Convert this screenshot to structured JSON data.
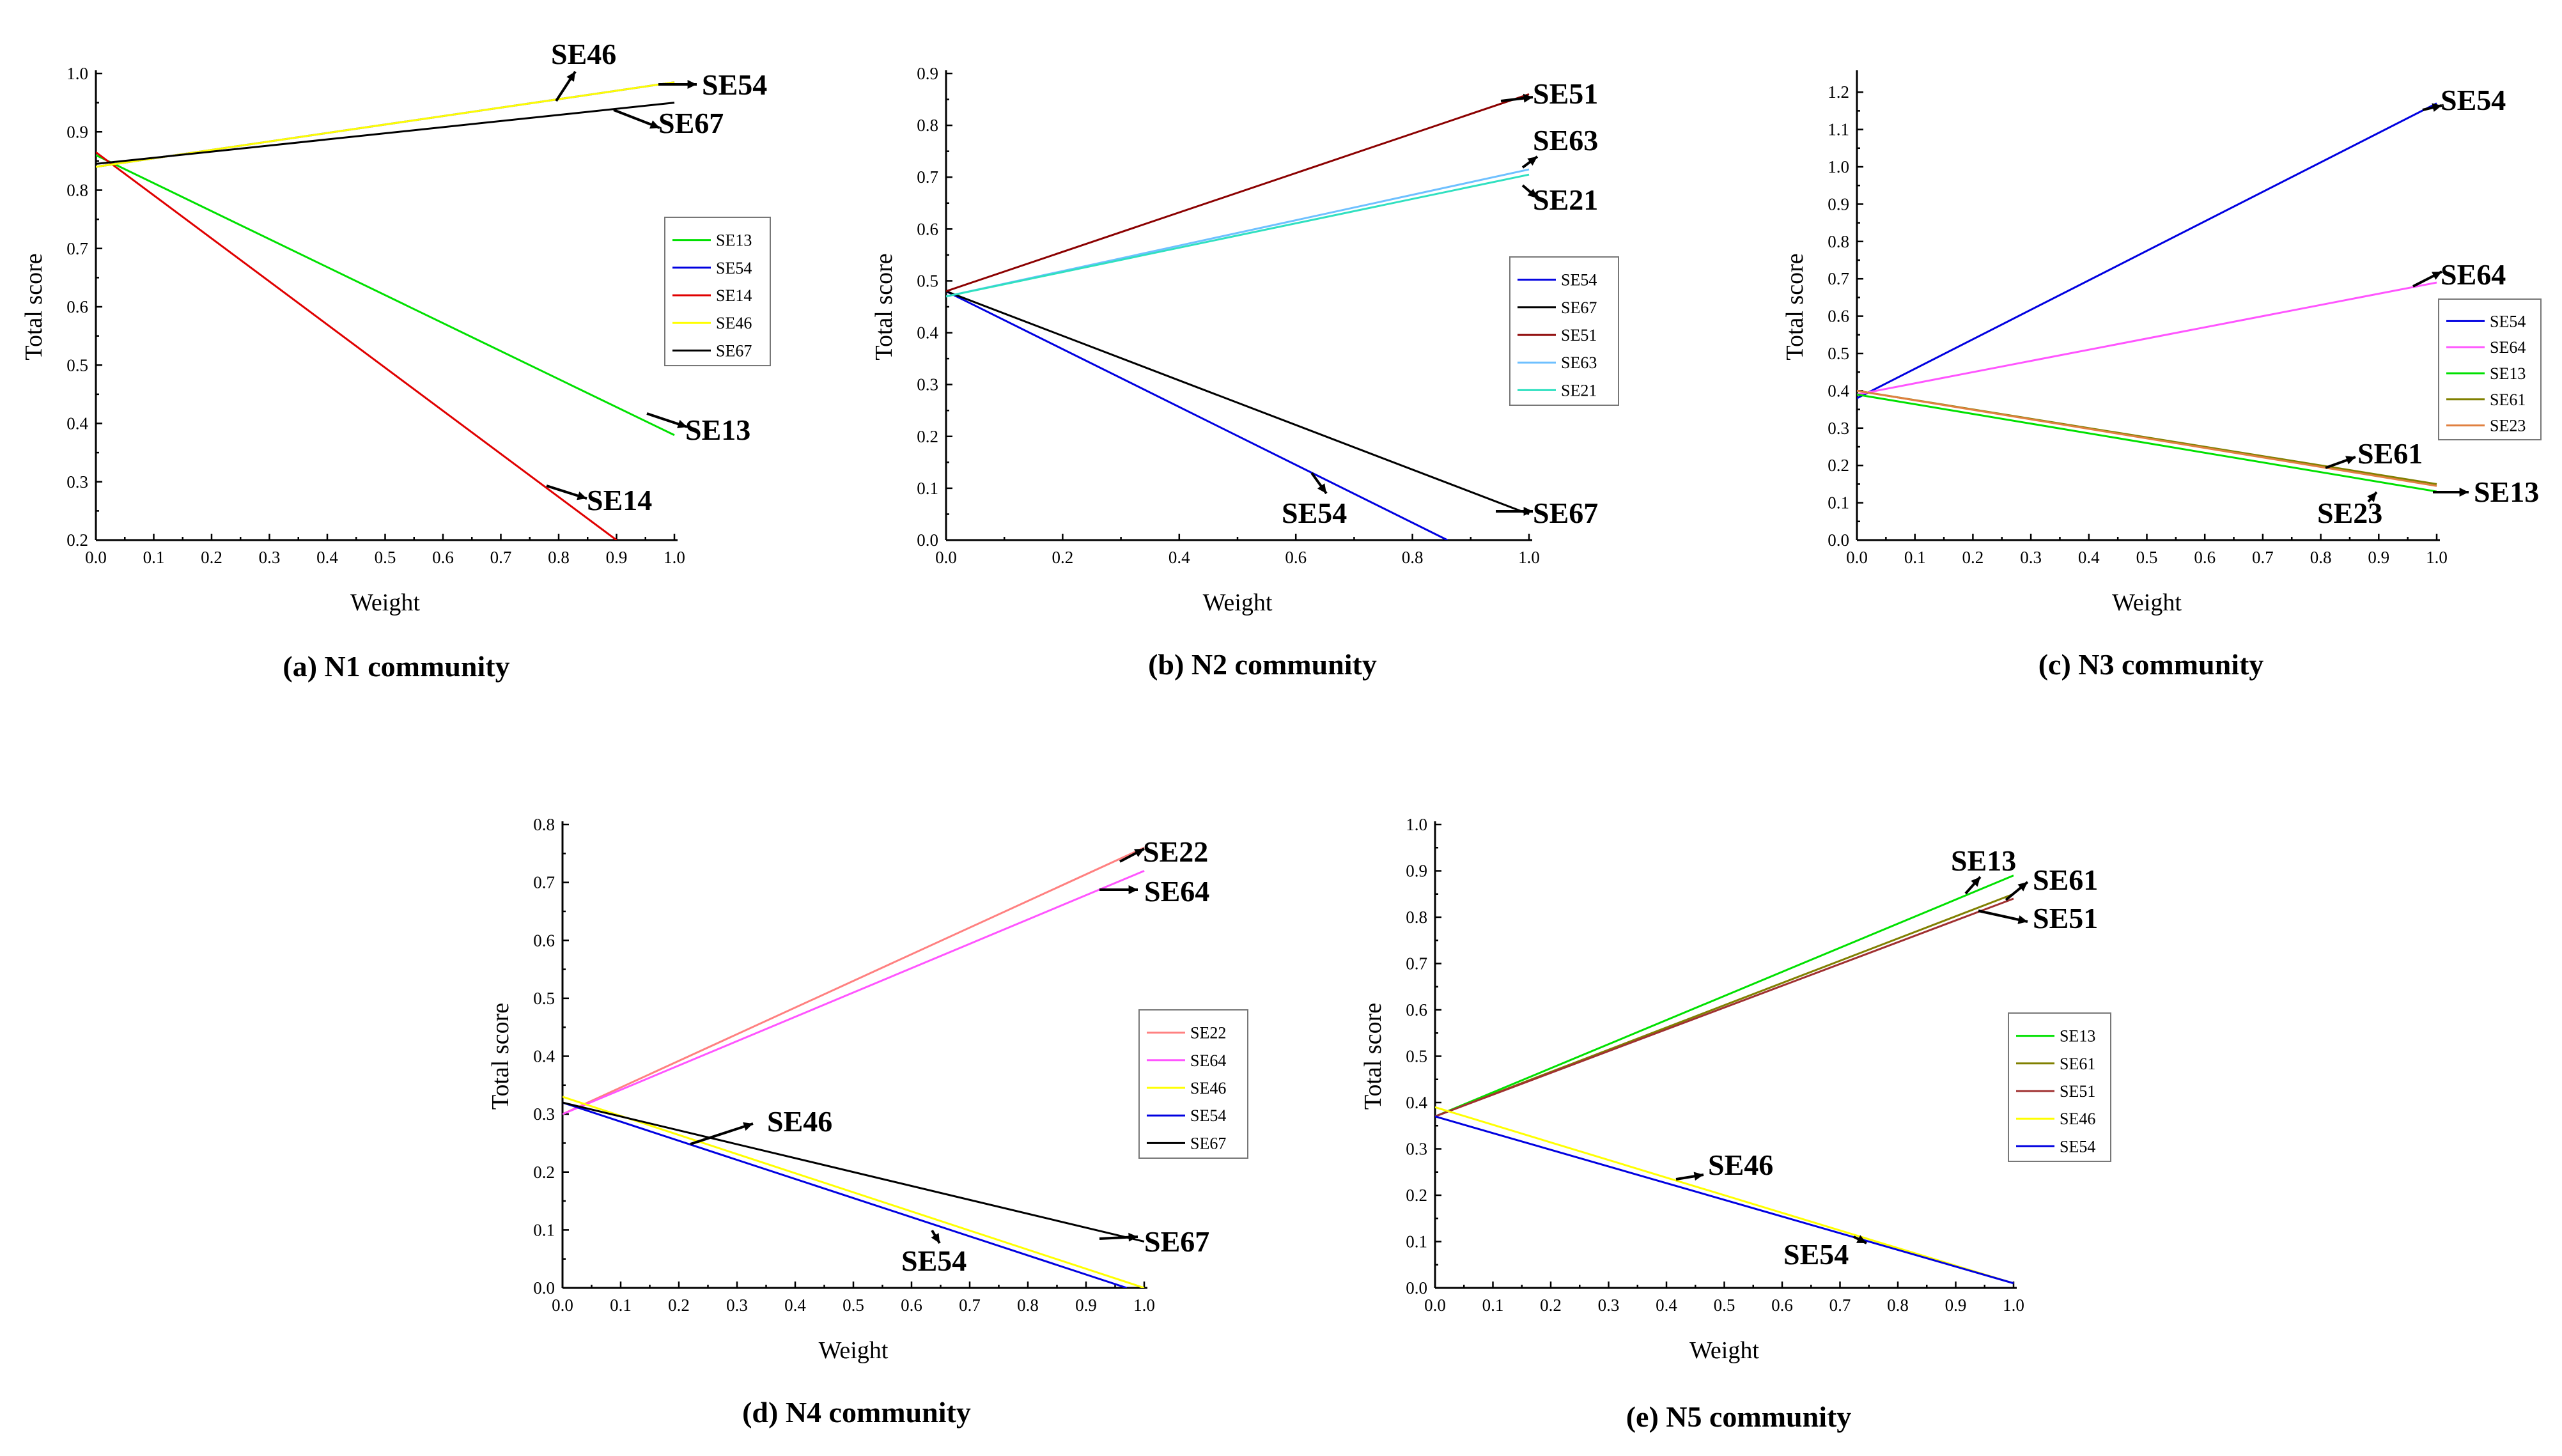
{
  "chart_data": [
    {
      "type": "line",
      "caption": "(a) N1 community",
      "xlabel": "Weight",
      "ylabel": "Total score",
      "xlim": [
        0.0,
        1.0
      ],
      "ylim": [
        0.2,
        1.0
      ],
      "xticks": [
        "0.0",
        "0.1",
        "0.2",
        "0.3",
        "0.4",
        "0.5",
        "0.6",
        "0.7",
        "0.8",
        "0.9",
        "1.0"
      ],
      "yticks": [
        "0.2",
        "0.3",
        "0.4",
        "0.5",
        "0.6",
        "0.7",
        "0.8",
        "0.9",
        "1.0"
      ],
      "legend_position": "right",
      "series": [
        {
          "name": "SE13",
          "color": "#00e000",
          "x": [
            0,
            1
          ],
          "y": [
            0.86,
            0.38
          ]
        },
        {
          "name": "SE54",
          "color": "#0000e0",
          "x": [
            0,
            1
          ],
          "y": [
            0.84,
            0.985
          ]
        },
        {
          "name": "SE14",
          "color": "#e00000",
          "x": [
            0,
            0.9
          ],
          "y": [
            0.865,
            0.2
          ]
        },
        {
          "name": "SE46",
          "color": "#ffff00",
          "x": [
            0,
            1
          ],
          "y": [
            0.84,
            0.985
          ]
        },
        {
          "name": "SE67",
          "color": "#000000",
          "x": [
            0,
            1
          ],
          "y": [
            0.845,
            0.95
          ]
        }
      ],
      "annotations": [
        {
          "text": "SE46",
          "at": [
            0.79,
            0.96
          ]
        },
        {
          "text": "SE54",
          "at": [
            1.0,
            0.985
          ]
        },
        {
          "text": "SE67",
          "at": [
            0.9,
            0.93
          ]
        },
        {
          "text": "SE13",
          "at": [
            1.0,
            0.38
          ]
        },
        {
          "text": "SE14",
          "at": [
            0.83,
            0.28
          ]
        }
      ]
    },
    {
      "type": "line",
      "caption": "(b) N2 community",
      "xlabel": "Weight",
      "ylabel": "Total score",
      "xlim": [
        0.0,
        1.0
      ],
      "ylim": [
        0.0,
        0.9
      ],
      "xticks": [
        "0.0",
        "0.2",
        "0.4",
        "0.6",
        "0.8",
        "1.0"
      ],
      "yticks": [
        "0.0",
        "0.1",
        "0.2",
        "0.3",
        "0.4",
        "0.5",
        "0.6",
        "0.7",
        "0.8",
        "0.9"
      ],
      "legend_position": "right",
      "series": [
        {
          "name": "SE54",
          "color": "#0000e0",
          "x": [
            0,
            0.86
          ],
          "y": [
            0.48,
            0.0
          ]
        },
        {
          "name": "SE67",
          "color": "#000000",
          "x": [
            0,
            1
          ],
          "y": [
            0.48,
            0.05
          ]
        },
        {
          "name": "SE51",
          "color": "#8b0000",
          "x": [
            0,
            1
          ],
          "y": [
            0.48,
            0.86
          ]
        },
        {
          "name": "SE63",
          "color": "#6ec0ff",
          "x": [
            0,
            1
          ],
          "y": [
            0.47,
            0.715
          ]
        },
        {
          "name": "SE21",
          "color": "#30e0c0",
          "x": [
            0,
            1
          ],
          "y": [
            0.47,
            0.705
          ]
        }
      ],
      "annotations": [
        {
          "text": "SE51",
          "at": [
            1.0,
            0.86
          ]
        },
        {
          "text": "SE63",
          "at": [
            1.0,
            0.715
          ]
        },
        {
          "text": "SE21",
          "at": [
            1.0,
            0.705
          ]
        },
        {
          "text": "SE54",
          "at": [
            0.65,
            0.12
          ]
        },
        {
          "text": "SE67",
          "at": [
            1.0,
            0.05
          ]
        }
      ]
    },
    {
      "type": "line",
      "caption": "(c) N3 community",
      "xlabel": "Weight",
      "ylabel": "Total score",
      "xlim": [
        0.0,
        1.0
      ],
      "ylim": [
        0.0,
        1.25
      ],
      "xticks": [
        "0.0",
        "0.1",
        "0.2",
        "0.3",
        "0.4",
        "0.5",
        "0.6",
        "0.7",
        "0.8",
        "0.9",
        "1.0"
      ],
      "yticks": [
        "0.0",
        "0.1",
        "0.2",
        "0.3",
        "0.4",
        "0.5",
        "0.6",
        "0.7",
        "0.8",
        "0.9",
        "1.0",
        "1.1",
        "1.2"
      ],
      "legend_position": "right",
      "series": [
        {
          "name": "SE54",
          "color": "#0000e0",
          "x": [
            0,
            1
          ],
          "y": [
            0.38,
            1.17
          ]
        },
        {
          "name": "SE64",
          "color": "#ff55ff",
          "x": [
            0,
            1
          ],
          "y": [
            0.39,
            0.69
          ]
        },
        {
          "name": "SE13",
          "color": "#00e000",
          "x": [
            0,
            1
          ],
          "y": [
            0.39,
            0.13
          ]
        },
        {
          "name": "SE61",
          "color": "#808000",
          "x": [
            0,
            1
          ],
          "y": [
            0.4,
            0.15
          ]
        },
        {
          "name": "SE23",
          "color": "#e08040",
          "x": [
            0,
            1
          ],
          "y": [
            0.4,
            0.145
          ]
        }
      ],
      "annotations": [
        {
          "text": "SE54",
          "at": [
            1.0,
            1.17
          ]
        },
        {
          "text": "SE64",
          "at": [
            1.0,
            0.69
          ]
        },
        {
          "text": "SE61",
          "at": [
            0.83,
            0.2
          ]
        },
        {
          "text": "SE13",
          "at": [
            1.0,
            0.13
          ]
        },
        {
          "text": "SE23",
          "at": [
            0.9,
            0.12
          ]
        }
      ]
    },
    {
      "type": "line",
      "caption": "(d) N4 community",
      "xlabel": "Weight",
      "ylabel": "Total score",
      "xlim": [
        0.0,
        1.0
      ],
      "ylim": [
        0.0,
        0.8
      ],
      "xticks": [
        "0.0",
        "0.1",
        "0.2",
        "0.3",
        "0.4",
        "0.5",
        "0.6",
        "0.7",
        "0.8",
        "0.9",
        "1.0"
      ],
      "yticks": [
        "0.0",
        "0.1",
        "0.2",
        "0.3",
        "0.4",
        "0.5",
        "0.6",
        "0.7",
        "0.8"
      ],
      "legend_position": "right",
      "series": [
        {
          "name": "SE22",
          "color": "#ff8080",
          "x": [
            0,
            1
          ],
          "y": [
            0.3,
            0.76
          ]
        },
        {
          "name": "SE64",
          "color": "#ff55ff",
          "x": [
            0,
            1
          ],
          "y": [
            0.3,
            0.72
          ]
        },
        {
          "name": "SE46",
          "color": "#ffff00",
          "x": [
            0,
            1
          ],
          "y": [
            0.33,
            0.0
          ]
        },
        {
          "name": "SE54",
          "color": "#0000e0",
          "x": [
            0,
            0.97
          ],
          "y": [
            0.32,
            0.0
          ]
        },
        {
          "name": "SE67",
          "color": "#000000",
          "x": [
            0,
            1
          ],
          "y": [
            0.32,
            0.08
          ]
        }
      ],
      "annotations": [
        {
          "text": "SE22",
          "at": [
            1.0,
            0.76
          ]
        },
        {
          "text": "SE64",
          "at": [
            0.94,
            0.69
          ]
        },
        {
          "text": "SE46",
          "at": [
            0.22,
            0.25
          ]
        },
        {
          "text": "SE67",
          "at": [
            0.95,
            0.09
          ]
        },
        {
          "text": "SE54",
          "at": [
            0.64,
            0.11
          ]
        }
      ]
    },
    {
      "type": "line",
      "caption": "(e) N5 community",
      "xlabel": "Weight",
      "ylabel": "Total score",
      "xlim": [
        0.0,
        1.0
      ],
      "ylim": [
        0.0,
        1.0
      ],
      "xticks": [
        "0.0",
        "0.1",
        "0.2",
        "0.3",
        "0.4",
        "0.5",
        "0.6",
        "0.7",
        "0.8",
        "0.9",
        "1.0"
      ],
      "yticks": [
        "0.0",
        "0.1",
        "0.2",
        "0.3",
        "0.4",
        "0.5",
        "0.6",
        "0.7",
        "0.8",
        "0.9",
        "1.0"
      ],
      "legend_position": "right",
      "series": [
        {
          "name": "SE13",
          "color": "#00e000",
          "x": [
            0,
            1
          ],
          "y": [
            0.37,
            0.89
          ]
        },
        {
          "name": "SE61",
          "color": "#808000",
          "x": [
            0,
            1
          ],
          "y": [
            0.37,
            0.85
          ]
        },
        {
          "name": "SE51",
          "color": "#a03030",
          "x": [
            0,
            1
          ],
          "y": [
            0.37,
            0.84
          ]
        },
        {
          "name": "SE46",
          "color": "#ffff00",
          "x": [
            0,
            1
          ],
          "y": [
            0.39,
            0.01
          ]
        },
        {
          "name": "SE54",
          "color": "#0000e0",
          "x": [
            0,
            1
          ],
          "y": [
            0.37,
            0.01
          ]
        }
      ],
      "annotations": [
        {
          "text": "SE13",
          "at": [
            0.92,
            0.87
          ]
        },
        {
          "text": "SE61",
          "at": [
            0.98,
            0.85
          ]
        },
        {
          "text": "SE51",
          "at": [
            0.94,
            0.81
          ]
        },
        {
          "text": "SE46",
          "at": [
            0.42,
            0.24
          ]
        },
        {
          "text": "SE54",
          "at": [
            0.74,
            0.08
          ]
        }
      ]
    }
  ]
}
